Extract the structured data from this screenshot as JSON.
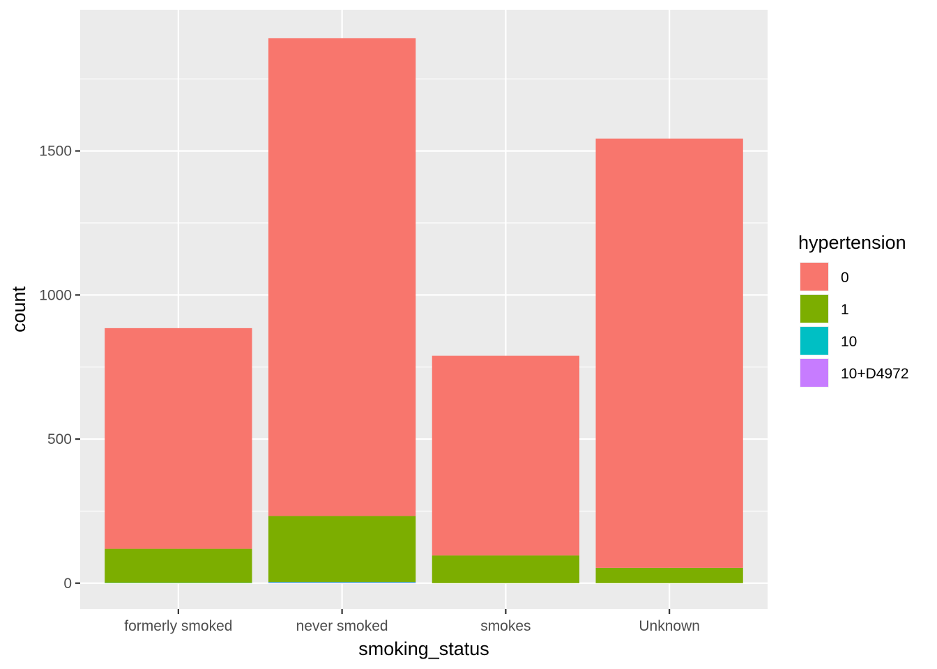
{
  "chart_data": {
    "type": "bar",
    "stacked": true,
    "xlabel": "smoking_status",
    "ylabel": "count",
    "categories": [
      "formerly smoked",
      "never smoked",
      "smokes",
      "Unknown"
    ],
    "series": [
      {
        "name": "0",
        "color": "#F8766D",
        "values": [
          766,
          1658,
          693,
          1490
        ]
      },
      {
        "name": "1",
        "color": "#7CAE00",
        "values": [
          118,
          229,
          96,
          53
        ]
      },
      {
        "name": "10",
        "color": "#00BFC4",
        "values": [
          1,
          2,
          0,
          0
        ]
      },
      {
        "name": "10+D4972",
        "color": "#C77CFF",
        "values": [
          0,
          2,
          0,
          0
        ]
      }
    ],
    "yticks": [
      0,
      500,
      1000,
      1500
    ],
    "ylim": [
      -90,
      1990
    ],
    "grid": true,
    "legend": {
      "title": "hypertension",
      "position": "right"
    }
  }
}
